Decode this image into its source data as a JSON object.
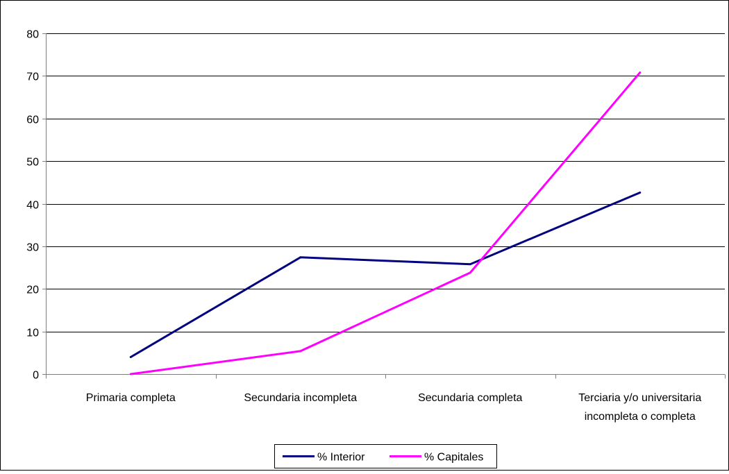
{
  "chart_data": {
    "type": "line",
    "title": "",
    "xlabel": "",
    "ylabel": "",
    "categories": [
      [
        "Primaria completa"
      ],
      [
        "Secundaria incompleta"
      ],
      [
        "Secundaria completa"
      ],
      [
        "Terciaria y/o universitaria",
        "incompleta o completa"
      ]
    ],
    "ylim": [
      0,
      80
    ],
    "yticks": [
      "0",
      "10",
      "20",
      "30",
      "40",
      "50",
      "60",
      "70",
      "80"
    ],
    "grid": true,
    "legend_position": "bottom",
    "series": [
      {
        "name": "% Interior",
        "values": [
          4.0,
          27.4,
          25.8,
          42.6
        ],
        "color": "#000080"
      },
      {
        "name": "% Capitales",
        "values": [
          0.0,
          5.4,
          23.8,
          70.8
        ],
        "color": "#ff00ff"
      }
    ],
    "colors": {
      "grid": "#000000",
      "axis": "#808080",
      "frame": "#000000"
    }
  }
}
